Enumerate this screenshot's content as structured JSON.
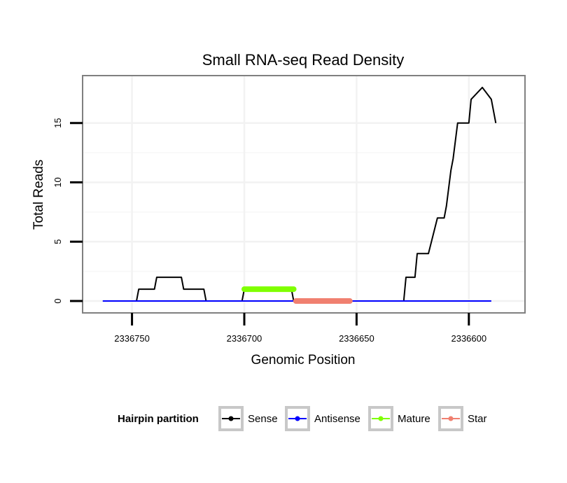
{
  "chart_data": {
    "type": "line",
    "title": "Small RNA-seq Read Density",
    "xlabel": "Genomic Position",
    "ylabel": "Total Reads",
    "xlim": [
      2336772,
      2336575
    ],
    "x_reversed": true,
    "ylim": [
      -1,
      19
    ],
    "x_ticks": [
      2336750,
      2336700,
      2336650,
      2336600
    ],
    "x_tick_labels": [
      "2336750",
      "2336700",
      "2336650",
      "2336600"
    ],
    "y_ticks": [
      0,
      5,
      10,
      15
    ],
    "y_tick_labels": [
      "0",
      "5",
      "10",
      "15"
    ],
    "grid": true,
    "legend": {
      "title": "Hairpin partition",
      "position": "bottom",
      "entries": [
        "Sense",
        "Antisense",
        "Mature",
        "Star"
      ]
    },
    "series": [
      {
        "name": "Sense",
        "color": "#000000",
        "x": [
          2336763,
          2336748,
          2336747,
          2336740,
          2336739,
          2336728,
          2336727,
          2336718,
          2336717,
          2336701,
          2336700,
          2336679,
          2336678,
          2336664,
          2336663,
          2336661,
          2336660,
          2336659,
          2336658,
          2336656,
          2336655,
          2336654,
          2336653,
          2336652,
          2336651,
          2336650,
          2336647,
          2336646,
          2336645,
          2336644,
          2336643,
          2336642,
          2336641,
          2336640,
          2336637,
          2336629,
          2336628,
          2336624,
          2336623,
          2336618,
          2336614,
          2336611,
          2336610,
          2336608,
          2336607,
          2336605,
          2336604,
          2336600,
          2336599,
          2336594,
          2336590,
          2336588
        ],
        "y": [
          0,
          0,
          1,
          1,
          2,
          2,
          1,
          1,
          0,
          0,
          1,
          1,
          0,
          0,
          0,
          0,
          0,
          0,
          0,
          0,
          0,
          0,
          0,
          0,
          0,
          0,
          0,
          0,
          0,
          0,
          0,
          0,
          0,
          0,
          0,
          0,
          2,
          2,
          4,
          4,
          7,
          7,
          8,
          11,
          12,
          15,
          15,
          15,
          17,
          18,
          17,
          15
        ]
      },
      {
        "name": "Antisense",
        "color": "#0000ff",
        "x": [
          2336763,
          2336590
        ],
        "y": [
          0,
          0
        ]
      },
      {
        "name": "Mature",
        "color": "#7fff00",
        "x": [
          2336700,
          2336678
        ],
        "y": [
          1,
          1
        ]
      },
      {
        "name": "Star",
        "color": "#f08070",
        "x": [
          2336677,
          2336653
        ],
        "y": [
          0,
          0
        ]
      }
    ]
  }
}
